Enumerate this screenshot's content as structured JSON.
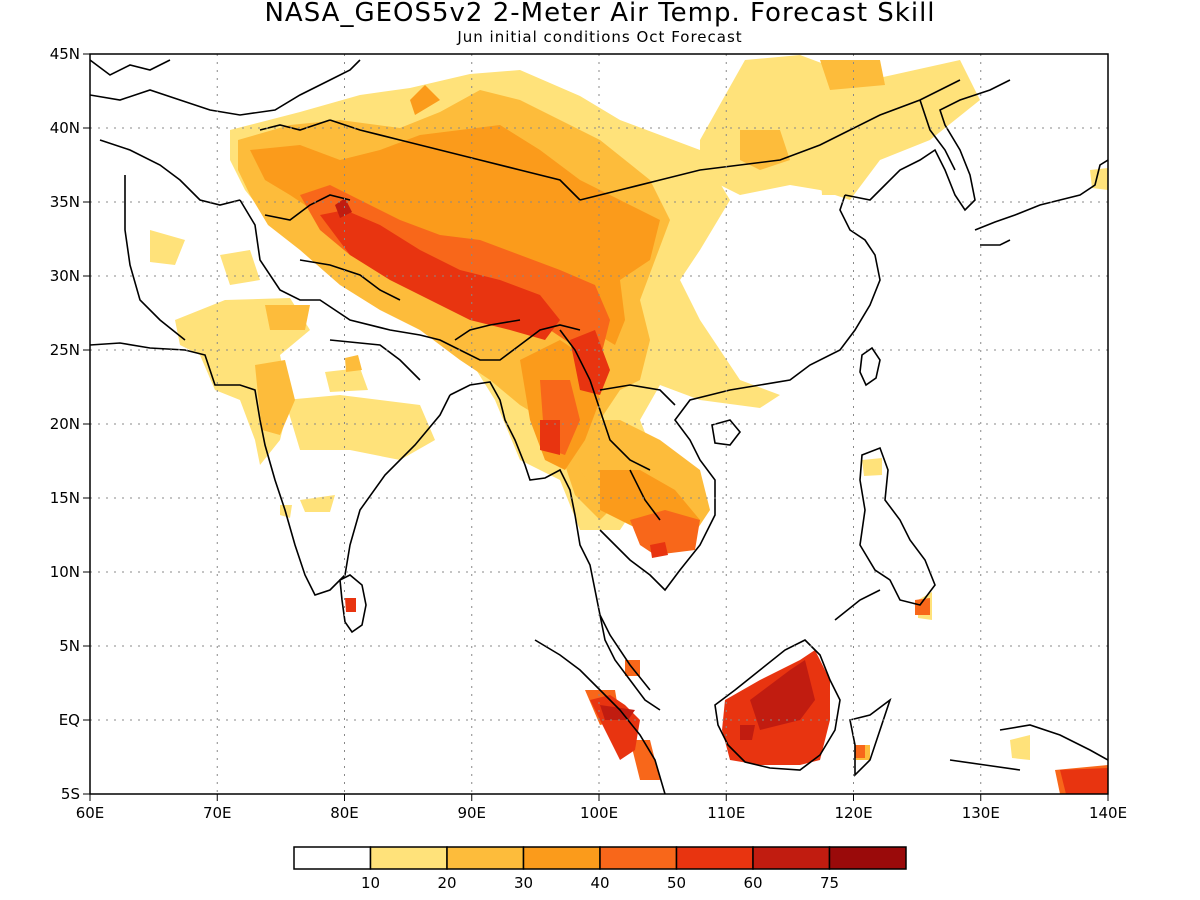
{
  "title": "NASA_GEOS5v2 2-Meter Air Temp. Forecast Skill",
  "subtitle": "Jun initial conditions  Oct Forecast",
  "map": {
    "lon_range": [
      60,
      140
    ],
    "lat_range": [
      -5,
      45
    ],
    "x_ticks": [
      "60E",
      "70E",
      "80E",
      "90E",
      "100E",
      "110E",
      "120E",
      "130E",
      "140E"
    ],
    "y_ticks": [
      "45N",
      "40N",
      "35N",
      "30N",
      "25N",
      "20N",
      "15N",
      "10N",
      "5N",
      "EQ",
      "5S"
    ],
    "grid": "dotted"
  },
  "colorbar": {
    "colors": [
      "#ffffff",
      "#ffe27a",
      "#fdbc3b",
      "#fb9b1b",
      "#f8671a",
      "#e83410",
      "#c11c10",
      "#9a0a0a"
    ],
    "labels": [
      "10",
      "20",
      "30",
      "40",
      "50",
      "60",
      "75"
    ]
  }
}
